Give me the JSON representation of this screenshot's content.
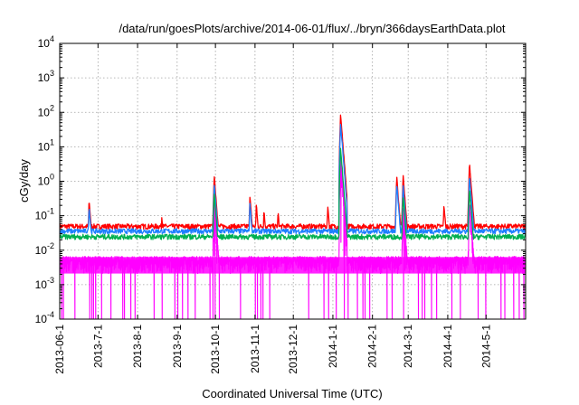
{
  "chart_data": {
    "type": "line",
    "title": "/data/run/goesPlots/archive/2014-06-01/flux/../bryn/366daysEarthData.plot",
    "xlabel": "Coordinated Universal Time (UTC)",
    "ylabel": "cGy/day",
    "yscale": "log",
    "ylim": [
      0.0001,
      10000
    ],
    "xlim": [
      "2013-06-01",
      "2014-06-01"
    ],
    "grid": true,
    "y_ticks": [
      {
        "base": "10",
        "exp": "-4",
        "value": 0.0001
      },
      {
        "base": "10",
        "exp": "-3",
        "value": 0.001
      },
      {
        "base": "10",
        "exp": "-2",
        "value": 0.01
      },
      {
        "base": "10",
        "exp": "-1",
        "value": 0.1
      },
      {
        "base": "10",
        "exp": "0",
        "value": 1
      },
      {
        "base": "10",
        "exp": "1",
        "value": 10
      },
      {
        "base": "10",
        "exp": "2",
        "value": 100
      },
      {
        "base": "10",
        "exp": "3",
        "value": 1000
      },
      {
        "base": "10",
        "exp": "4",
        "value": 10000
      }
    ],
    "x_ticks": [
      "2013-06-1",
      "2013-7-1",
      "2013-8-1",
      "2013-9-1",
      "2013-10-1",
      "2013-11-1",
      "2013-12-1",
      "2014-1-1",
      "2014-2-1",
      "2014-3-1",
      "2014-4-1",
      "2014-5-1"
    ],
    "x_tick_dates": [
      "2013-06-01",
      "2013-07-01",
      "2013-08-01",
      "2013-09-01",
      "2013-10-01",
      "2013-11-01",
      "2013-12-01",
      "2014-01-01",
      "2014-02-01",
      "2014-03-01",
      "2014-04-01",
      "2014-05-01"
    ],
    "series": [
      {
        "color": "#ff0000",
        "baseline": 0.048,
        "events": [
          {
            "date": "2013-06-24",
            "peak": 0.3
          },
          {
            "date": "2013-08-20",
            "peak": 0.1
          },
          {
            "date": "2013-09-30",
            "peak": 1.6
          },
          {
            "date": "2013-10-28",
            "peak": 0.38
          },
          {
            "date": "2013-11-02",
            "peak": 0.22
          },
          {
            "date": "2013-11-08",
            "peak": 0.16
          },
          {
            "date": "2013-11-19",
            "peak": 0.14
          },
          {
            "date": "2013-12-28",
            "peak": 0.2
          },
          {
            "date": "2014-01-07",
            "peak": 90
          },
          {
            "date": "2014-02-20",
            "peak": 1.4
          },
          {
            "date": "2014-02-25",
            "peak": 1.6
          },
          {
            "date": "2014-03-29",
            "peak": 0.22
          },
          {
            "date": "2014-04-18",
            "peak": 3.5
          }
        ]
      },
      {
        "color": "#1e7fff",
        "baseline": 0.035,
        "events": [
          {
            "date": "2013-06-24",
            "peak": 0.2
          },
          {
            "date": "2013-09-30",
            "peak": 0.9
          },
          {
            "date": "2013-10-28",
            "peak": 0.25
          },
          {
            "date": "2014-01-07",
            "peak": 50
          },
          {
            "date": "2014-02-20",
            "peak": 0.9
          },
          {
            "date": "2014-02-25",
            "peak": 0.8
          },
          {
            "date": "2014-04-18",
            "peak": 1.5
          }
        ]
      },
      {
        "color": "#00b050",
        "baseline": 0.024,
        "events": [
          {
            "date": "2013-09-30",
            "peak": 0.5
          },
          {
            "date": "2014-01-07",
            "peak": 10
          },
          {
            "date": "2014-02-25",
            "peak": 0.4
          },
          {
            "date": "2014-04-18",
            "peak": 0.6
          }
        ]
      },
      {
        "color": "#ff00ff",
        "baseline": 0.0055,
        "floor": 0.0021,
        "events": [
          {
            "date": "2013-09-30",
            "peak": 0.3
          },
          {
            "date": "2014-01-07",
            "peak": 5
          },
          {
            "date": "2014-02-25",
            "peak": 0.2
          },
          {
            "date": "2014-04-18",
            "peak": 0.25
          }
        ]
      }
    ]
  }
}
